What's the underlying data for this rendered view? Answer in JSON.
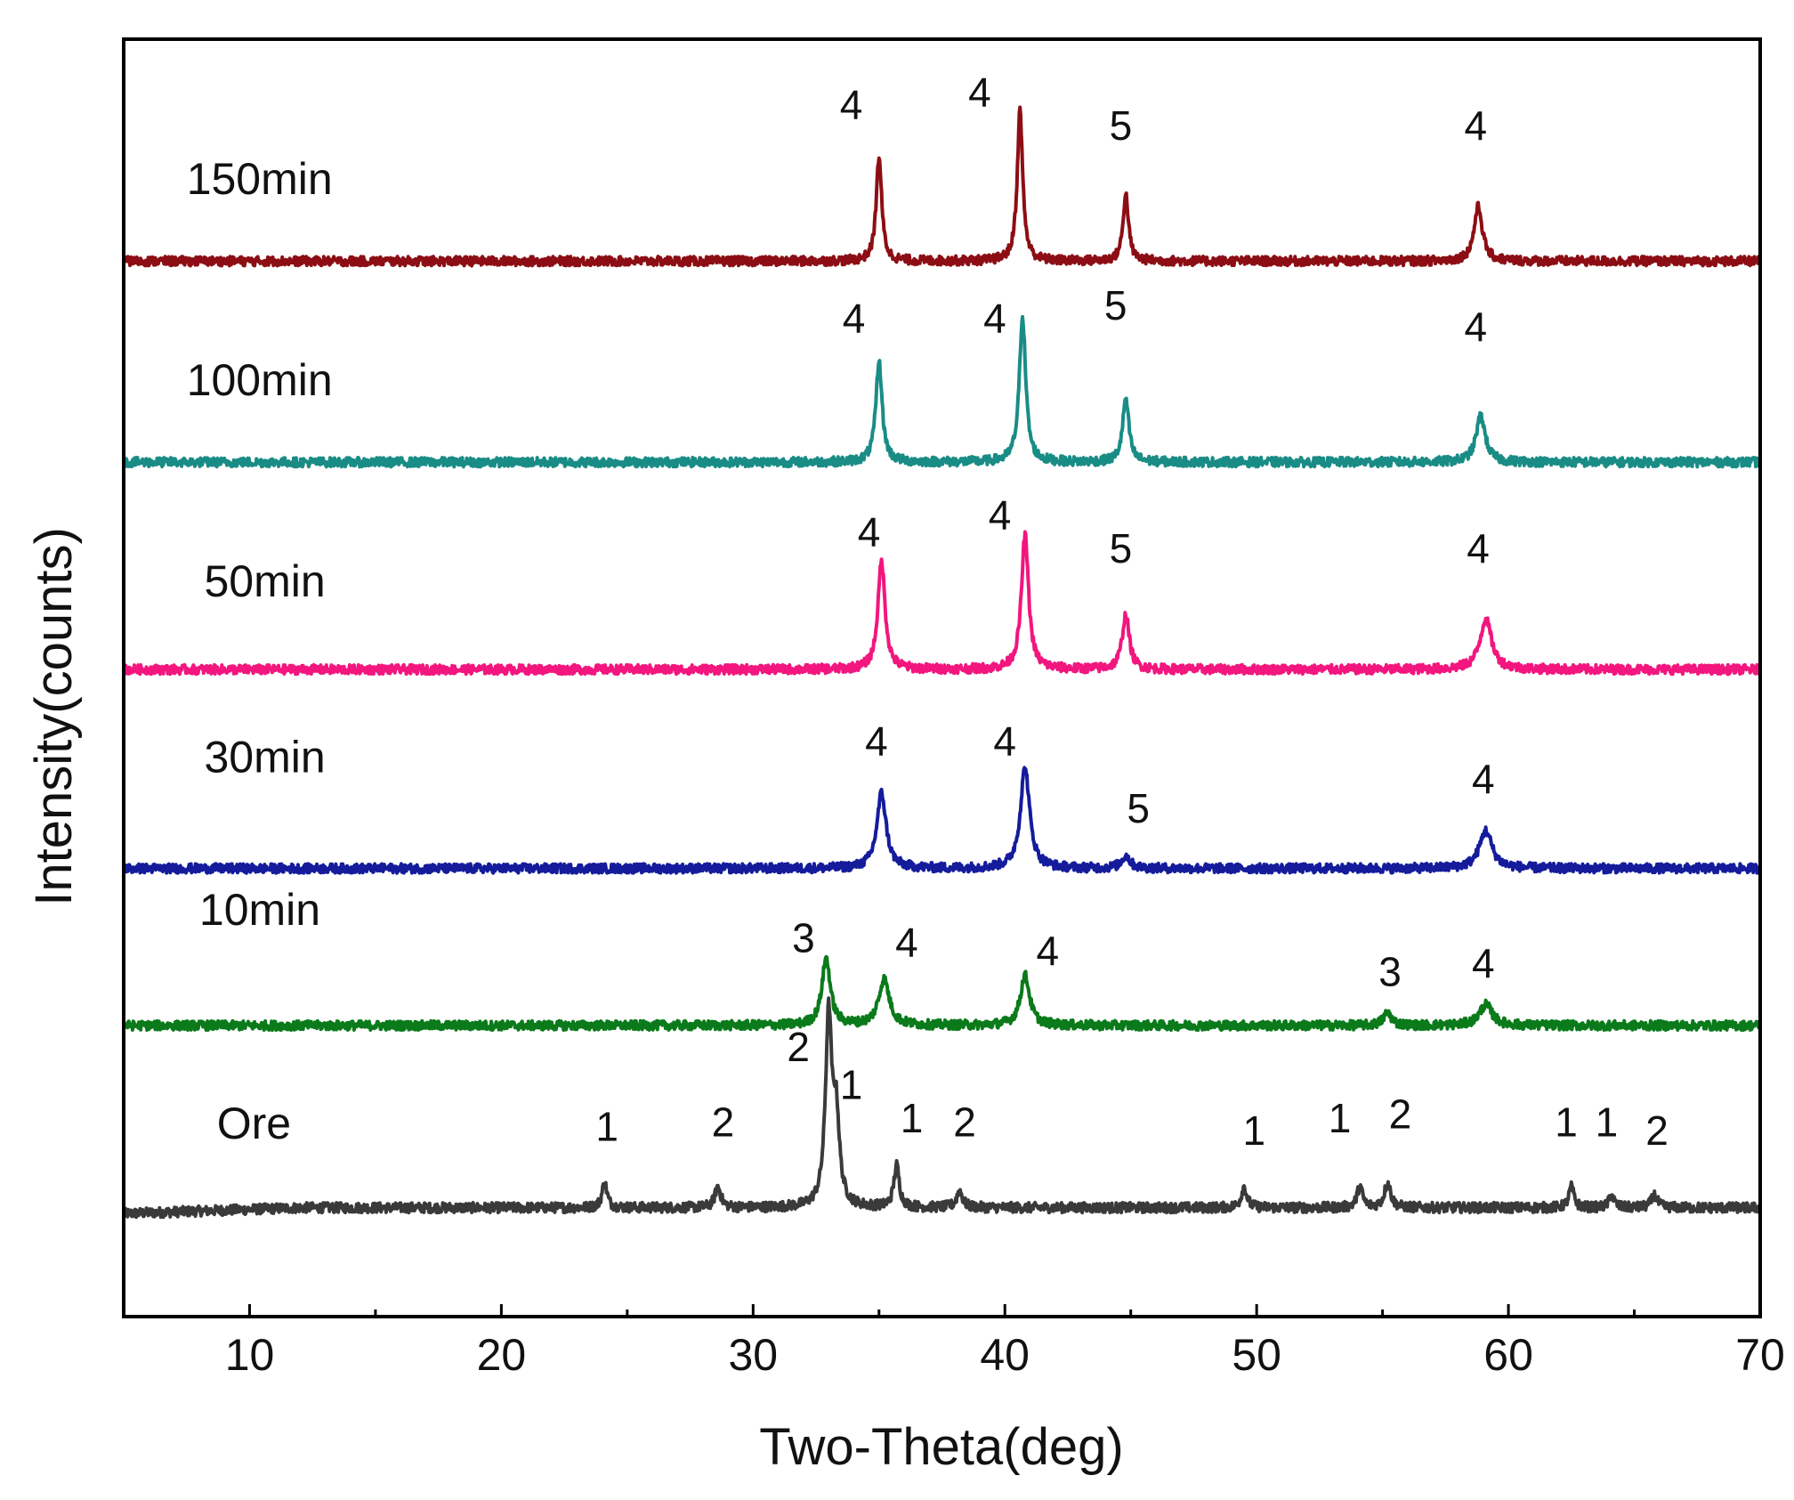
{
  "chart_data": {
    "type": "line",
    "title": "",
    "xlabel": "Two-Theta(deg)",
    "ylabel": "Intensity(counts)",
    "xlim": [
      5,
      70
    ],
    "x_ticks": [
      10,
      20,
      30,
      40,
      50,
      60,
      70
    ],
    "x_tick_labels": [
      "10",
      "20",
      "30",
      "40",
      "50",
      "60",
      "70"
    ],
    "y_ticks_shown": false,
    "series": [
      {
        "name": "Ore",
        "color": "#3a3a3a",
        "offset": 0.18,
        "noise": 0.012,
        "peaks": [
          {
            "x": 24.1,
            "height": 0.06,
            "width": 0.12
          },
          {
            "x": 28.6,
            "height": 0.05,
            "width": 0.14
          },
          {
            "x": 33.0,
            "height": 0.45,
            "width": 0.15
          },
          {
            "x": 33.3,
            "height": 0.2,
            "width": 0.15
          },
          {
            "x": 35.7,
            "height": 0.1,
            "width": 0.13
          },
          {
            "x": 38.2,
            "height": 0.04,
            "width": 0.14
          },
          {
            "x": 49.5,
            "height": 0.05,
            "width": 0.13
          },
          {
            "x": 54.1,
            "height": 0.05,
            "width": 0.13
          },
          {
            "x": 55.2,
            "height": 0.06,
            "width": 0.15
          },
          {
            "x": 62.5,
            "height": 0.05,
            "width": 0.12
          },
          {
            "x": 64.1,
            "height": 0.03,
            "width": 0.12
          },
          {
            "x": 65.8,
            "height": 0.03,
            "width": 0.14
          }
        ],
        "peak_labels": [
          {
            "text": "1",
            "x": 24.2,
            "y": 0.34
          },
          {
            "text": "2",
            "x": 28.8,
            "y": 0.35
          },
          {
            "text": "2",
            "x": 31.8,
            "y": 0.53
          },
          {
            "text": "1",
            "x": 33.9,
            "y": 0.44
          },
          {
            "text": "1",
            "x": 36.3,
            "y": 0.36
          },
          {
            "text": "2",
            "x": 38.4,
            "y": 0.35
          },
          {
            "text": "1",
            "x": 49.9,
            "y": 0.33
          },
          {
            "text": "1",
            "x": 53.3,
            "y": 0.36
          },
          {
            "text": "2",
            "x": 55.7,
            "y": 0.37
          },
          {
            "text": "1",
            "x": 62.3,
            "y": 0.35
          },
          {
            "text": "1",
            "x": 63.9,
            "y": 0.35
          },
          {
            "text": "2",
            "x": 65.9,
            "y": 0.33
          }
        ]
      },
      {
        "name": "10min",
        "color": "#0a7a1a",
        "offset": 0.615,
        "noise": 0.011,
        "peaks": [
          {
            "x": 32.9,
            "height": 0.16,
            "width": 0.2
          },
          {
            "x": 35.2,
            "height": 0.11,
            "width": 0.25
          },
          {
            "x": 40.8,
            "height": 0.12,
            "width": 0.22
          },
          {
            "x": 55.2,
            "height": 0.03,
            "width": 0.2
          },
          {
            "x": 59.1,
            "height": 0.05,
            "width": 0.3
          }
        ],
        "peak_labels": [
          {
            "text": "3",
            "x": 32.0,
            "y": 0.79
          },
          {
            "text": "4",
            "x": 36.1,
            "y": 0.78
          },
          {
            "text": "4",
            "x": 41.7,
            "y": 0.76
          },
          {
            "text": "3",
            "x": 55.3,
            "y": 0.71
          },
          {
            "text": "4",
            "x": 59.0,
            "y": 0.73
          }
        ]
      },
      {
        "name": "30min",
        "color": "#141c9c",
        "offset": 0.99,
        "noise": 0.011,
        "peaks": [
          {
            "x": 35.1,
            "height": 0.18,
            "width": 0.22
          },
          {
            "x": 40.8,
            "height": 0.24,
            "width": 0.22
          },
          {
            "x": 44.8,
            "height": 0.03,
            "width": 0.2
          },
          {
            "x": 59.1,
            "height": 0.09,
            "width": 0.3
          }
        ],
        "peak_labels": [
          {
            "text": "4",
            "x": 34.9,
            "y": 1.26
          },
          {
            "text": "4",
            "x": 40.0,
            "y": 1.26
          },
          {
            "text": "5",
            "x": 45.3,
            "y": 1.1
          },
          {
            "text": "4",
            "x": 59.0,
            "y": 1.17
          }
        ]
      },
      {
        "name": "50min",
        "color": "#f2167e",
        "offset": 1.465,
        "noise": 0.011,
        "peaks": [
          {
            "x": 35.1,
            "height": 0.26,
            "width": 0.17
          },
          {
            "x": 40.8,
            "height": 0.32,
            "width": 0.17
          },
          {
            "x": 44.8,
            "height": 0.13,
            "width": 0.17
          },
          {
            "x": 59.1,
            "height": 0.12,
            "width": 0.28
          }
        ],
        "peak_labels": [
          {
            "text": "4",
            "x": 34.6,
            "y": 1.76
          },
          {
            "text": "4",
            "x": 39.8,
            "y": 1.8
          },
          {
            "text": "5",
            "x": 44.6,
            "y": 1.72
          },
          {
            "text": "4",
            "x": 58.8,
            "y": 1.72
          }
        ]
      },
      {
        "name": "100min",
        "color": "#1a8c86",
        "offset": 1.96,
        "noise": 0.011,
        "peaks": [
          {
            "x": 35.0,
            "height": 0.24,
            "width": 0.15
          },
          {
            "x": 40.7,
            "height": 0.35,
            "width": 0.15
          },
          {
            "x": 44.8,
            "height": 0.15,
            "width": 0.15
          },
          {
            "x": 58.9,
            "height": 0.11,
            "width": 0.22
          }
        ],
        "peak_labels": [
          {
            "text": "4",
            "x": 34.0,
            "y": 2.27
          },
          {
            "text": "4",
            "x": 39.6,
            "y": 2.27
          },
          {
            "text": "5",
            "x": 44.4,
            "y": 2.3
          },
          {
            "text": "4",
            "x": 58.7,
            "y": 2.25
          }
        ]
      },
      {
        "name": "150min",
        "color": "#8c0e14",
        "offset": 2.44,
        "noise": 0.011,
        "peaks": [
          {
            "x": 35.0,
            "height": 0.25,
            "width": 0.13
          },
          {
            "x": 40.6,
            "height": 0.36,
            "width": 0.13
          },
          {
            "x": 44.8,
            "height": 0.16,
            "width": 0.13
          },
          {
            "x": 58.8,
            "height": 0.13,
            "width": 0.2
          }
        ],
        "peak_labels": [
          {
            "text": "4",
            "x": 33.9,
            "y": 2.78
          },
          {
            "text": "4",
            "x": 39.0,
            "y": 2.81
          },
          {
            "text": "5",
            "x": 44.6,
            "y": 2.73
          },
          {
            "text": "4",
            "x": 58.7,
            "y": 2.73
          }
        ]
      }
    ],
    "series_labels": [
      {
        "text": "150min",
        "x": 7.5,
        "y": 2.6
      },
      {
        "text": "100min",
        "x": 7.5,
        "y": 2.12
      },
      {
        "text": "50min",
        "x": 8.2,
        "y": 1.64
      },
      {
        "text": "30min",
        "x": 8.2,
        "y": 1.22
      },
      {
        "text": "10min",
        "x": 8.0,
        "y": 0.855
      },
      {
        "text": "Ore",
        "x": 8.7,
        "y": 0.345
      }
    ],
    "ylim": [
      -0.08,
      2.97
    ]
  }
}
